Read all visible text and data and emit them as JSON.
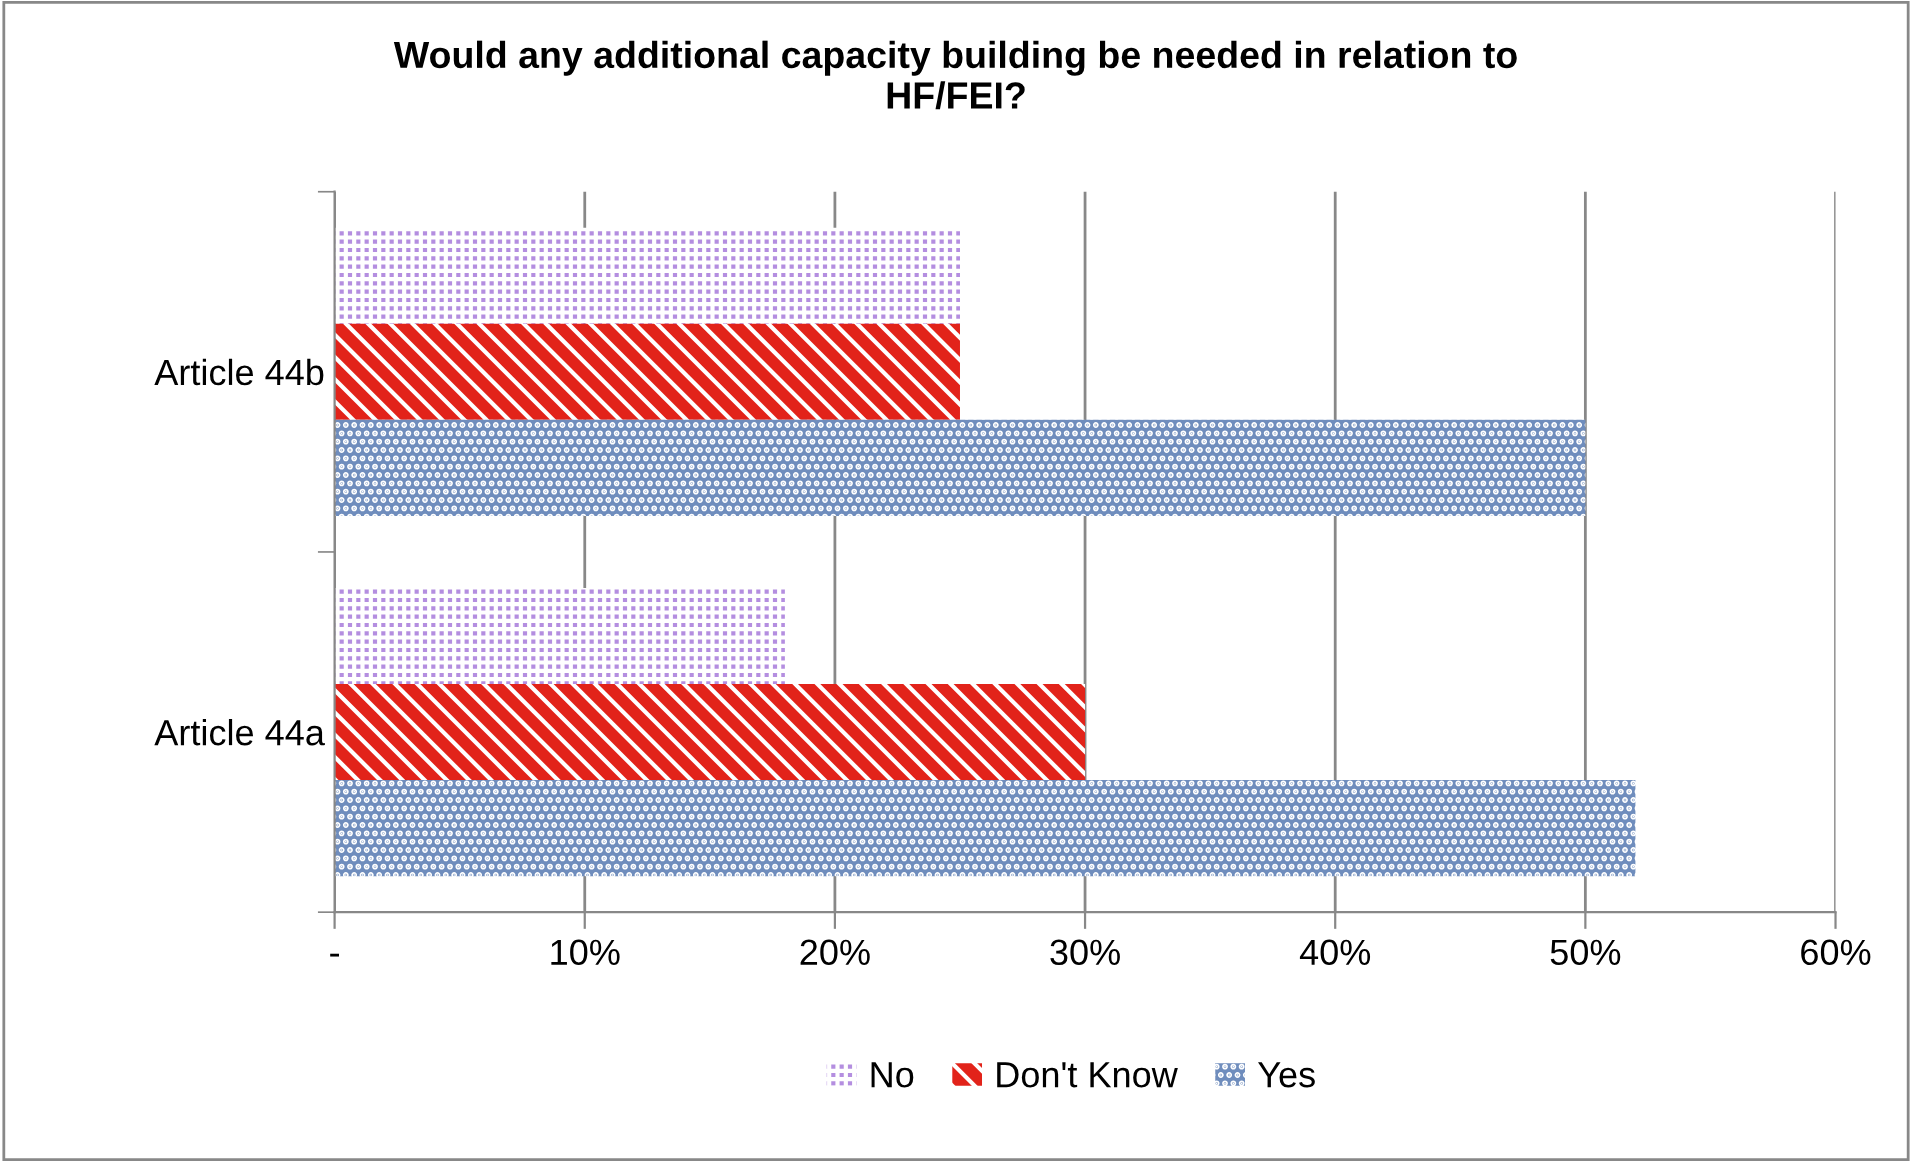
{
  "chart_data": {
    "type": "bar",
    "orientation": "horizontal",
    "title": "Would any additional capacity building be needed in relation to\nHF/FEI?",
    "categories": [
      "Article 44b",
      "Article 44a"
    ],
    "series": [
      {
        "name": "No",
        "color": "#b48ee0",
        "values": [
          25,
          18
        ]
      },
      {
        "name": "Don't Know",
        "color": "#e2231a",
        "values": [
          25,
          30
        ]
      },
      {
        "name": "Yes",
        "color": "#6f8dbd",
        "values": [
          50,
          52
        ]
      }
    ],
    "xlim": [
      0,
      60
    ],
    "xticks": [
      {
        "value": 0,
        "label": "-"
      },
      {
        "value": 10,
        "label": "10%"
      },
      {
        "value": 20,
        "label": "20%"
      },
      {
        "value": 30,
        "label": "30%"
      },
      {
        "value": 40,
        "label": "40%"
      },
      {
        "value": 50,
        "label": "50%"
      },
      {
        "value": 60,
        "label": "60%"
      }
    ],
    "grid": "x",
    "legend": "bottom"
  }
}
